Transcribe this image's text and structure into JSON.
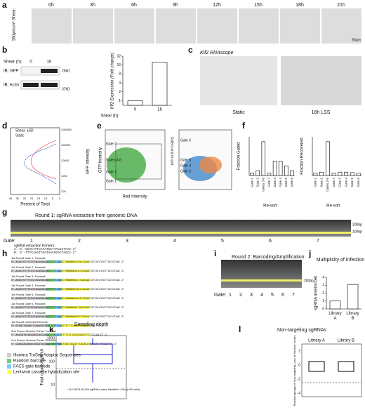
{
  "panels": {
    "a": {
      "label": "a",
      "shear": "18dyn/cm² Shear:",
      "times": [
        "0h",
        "3h",
        "6h",
        "9h",
        "12h",
        "15h",
        "18h",
        "21h"
      ],
      "scale": "50µm"
    },
    "b": {
      "label": "b",
      "shear": "Shear (h):",
      "lanes": [
        "0",
        "16"
      ],
      "rows": [
        "IB: GFP",
        "IB: Actin"
      ],
      "markers": [
        "25kD",
        "37kD"
      ]
    },
    "c": {
      "label": "c",
      "title": "Klf2 RNAscope",
      "images": [
        "Static",
        "16h LSS"
      ]
    },
    "d": {
      "label": "d",
      "legend": [
        "Shear, ±SD",
        "Static"
      ],
      "xlabel": "Percent of Total",
      "ylabel": "GFP Intensity",
      "xticks": [
        "35",
        "30",
        "25",
        "20",
        "15",
        "10",
        "5",
        "0"
      ],
      "yticks": [
        "1000000",
        "100000",
        "10000",
        "1000",
        "100"
      ]
    },
    "e": {
      "label": "e",
      "gates_left": [
        "Gate 7",
        "Gates 3-6",
        "Gate 2",
        "Gate 1"
      ],
      "gates_right": [
        "Gate 6",
        "Gate 5",
        "Gate 4",
        "Gate 3"
      ],
      "bracket": "Collect and re-sort",
      "xlabel": "Red Intensity",
      "ylabel": "GFP Intensity"
    },
    "f": {
      "label": "f",
      "resort": "Re-sort"
    },
    "g": {
      "label": "g",
      "title": "Round 1: sgRNA extraction from genomic DNA",
      "gate": "Gate:",
      "lanes": [
        "1",
        "2",
        "3",
        "4",
        "5",
        "6",
        "7"
      ],
      "markers": [
        "200bp",
        "100bp"
      ],
      "primers_title": "sgRNA extraction Primers:",
      "primers": [
        "A: 5'-GGACTATCATATGCTTACCGTAAC-3'",
        "B: 5'-TTTCAAGTTGATAACGGACTAGCC-3'"
      ]
    },
    "h": {
      "label": "h",
      "entries": [
        {
          "name": "1st Round Gate 1, Forward:",
          "seq": "5'-ACACTCTTTCCCTACACGACGCTCTTCCGATCTNNNNNNCGTGATGGACTATCATATGCTTACCGTAAC-3'"
        },
        {
          "name": "1st Round Gate 2, Forward:",
          "seq": "5'-ACACTCTTTCCCTACACGACGCTCTTCCGATCTNNNNNNACATCGGGACTATCATATGCTTACCGTAAC-3'"
        },
        {
          "name": "1st Round Gate 3, Forward:",
          "seq": "5'-ACACTCTTTCCCTACACGACGCTCTTCCGATCTNNNNNNGCCTAAGGACTATCATATGCTTACCGTAAC-3'"
        },
        {
          "name": "1st Round Gate 4, Forward:",
          "seq": "5'-ACACTCTTTCCCTACACGACGCTCTTCCGATCTNNNNNNTGGTCAGGACTATCATATGCTTACCGTAAC-3'"
        },
        {
          "name": "1st Round Gate 5, Forward:",
          "seq": "5'-ACACTCTTTCCCTACACGACGCTCTTCCGATCTNNNNNNCACTGTGGACTATCATATGCTTACCGTAAC-3'"
        },
        {
          "name": "1st Round Gate 6, Forward:",
          "seq": "5'-ACACTCTTTCCCTACACGACGCTCTTCCGATCTNNNNNNATTGGCGGACTATCATATGCTTACCGTAAC-3'"
        },
        {
          "name": "1st Round Gate 7, Forward:",
          "seq": "5'-ACACTCTTTCCCTACACGACGCTCTTCCGATCTNNNNNNGATCTGGGACTATCATATGCTTACCGTAAC-3'"
        },
        {
          "name": "1st Round Universal Reverse:",
          "seq": "5'-GTGACTGGAGTTCAGACGTGTGCTCTTCCGATCTTTTCAAGTTGATAACGGACTAGCC-3'"
        },
        {
          "name": "2nd Round Illumina Primer Forward:",
          "seq": "5'-AATGATACGGCGACCACCGAGATCTACACTCTTTCCCTACACGACGCTCTTCCGATCT-3'"
        },
        {
          "name": "2nd Round Illumina Primer Reverse:",
          "seq": "5'-CAAGCAGAAGACGGCATACGAGATNNNNNNGTGACTGGAGTTCAGACGTGTGCTCTTCCGATCT-3'"
        }
      ],
      "key": [
        "Illumina TruSeq Adaptor Sequences",
        "Random barcode",
        "FACS gate barcode",
        "Lentiviral cassette hybridization site"
      ]
    },
    "i": {
      "label": "i",
      "title": "Round 2: Barcoding/Amplification",
      "gate": "Gate:",
      "lanes": [
        "1",
        "2",
        "3",
        "4",
        "5",
        "6",
        "7"
      ],
      "marker": "200bp"
    },
    "j": {
      "label": "j"
    },
    "k": {
      "label": "k",
      "title": "Sampling depth",
      "ylabel": "Total counts/sgRNA",
      "yticks": [
        "1000",
        "100",
        "10"
      ],
      "note": "~114,000/130,000 sgRNAs were identified >50x (>50 cells)"
    },
    "l": {
      "label": "l",
      "title": "Non-targeting sgRNAs",
      "ylabel": "Random groups of Non-targeting Loss-of-function scores",
      "libs": [
        "Library A",
        "Library B"
      ],
      "yticks": [
        "2",
        "0",
        "-2",
        "-4"
      ]
    }
  },
  "chart_data": [
    {
      "type": "bar",
      "categories": [
        "0",
        "16"
      ],
      "values": [
        1,
        20
      ],
      "xlabel": "Shear (h):",
      "ylabel": "Klf2 Expression (Fold change)",
      "log": true,
      "ylim": [
        0.7,
        32
      ],
      "yticks": [
        1,
        2,
        4,
        8,
        16,
        32
      ],
      "color": "#ffffff"
    },
    {
      "type": "bar",
      "title": "Multiplicity of Infection",
      "categories": [
        "Library A",
        "Library B"
      ],
      "values": [
        1,
        3.1
      ],
      "ylabel": "sgRNA inserts/cell",
      "ylim": [
        0,
        4
      ],
      "yticks": [
        0,
        1,
        2,
        3,
        4
      ],
      "color": "#ffffff"
    },
    {
      "type": "bar",
      "categories": [
        "Gate 1",
        "Gate 2",
        "Gates 3-6",
        "Gate 7",
        "Gate 3",
        "Gate 4",
        "Gate 5",
        "Gate 6"
      ],
      "values": [
        0.05,
        0.1,
        0.7,
        0.05,
        0.3,
        0.3,
        0.2,
        0.1
      ],
      "ylabel": "Fraction Gated",
      "ylim": [
        0,
        0.8
      ],
      "color": "#ffffff"
    },
    {
      "type": "bar",
      "categories": [
        "Gate 1",
        "Gate 2",
        "Gates 3-6",
        "Gate 7",
        "Gate 3",
        "Gate 4",
        "Gate 5",
        "Gate 6"
      ],
      "values": [
        0.05,
        0.07,
        0.7,
        0.05,
        0.07,
        0.07,
        0.06,
        0.05
      ],
      "ylabel": "Fraction Recovered",
      "ylim": [
        0,
        0.8
      ],
      "color": "#ffffff"
    }
  ]
}
